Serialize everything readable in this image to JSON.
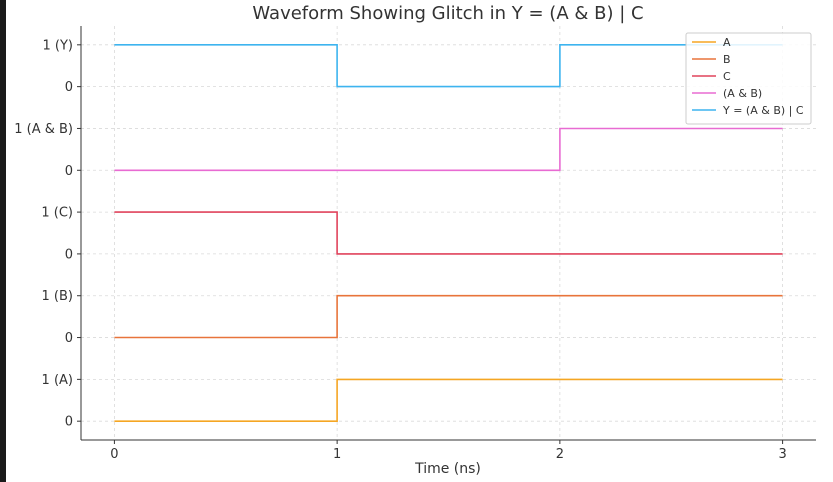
{
  "chart_data": {
    "type": "line",
    "step": "post",
    "title": "Waveform Showing Glitch in Y = (A & B) | C",
    "xlabel": "Time (ns)",
    "ylabel": "",
    "xlim": [
      -0.15,
      3.15
    ],
    "x_ticks": [
      "0",
      "1",
      "2",
      "3"
    ],
    "x": [
      0,
      1,
      2,
      3
    ],
    "grid": true,
    "legend_position": "top-right",
    "y_ticks": [
      {
        "label": "0",
        "value": 0
      },
      {
        "label": "1 (A)",
        "value": 1
      },
      {
        "label": "0",
        "value": 2
      },
      {
        "label": "1 (B)",
        "value": 3
      },
      {
        "label": "0",
        "value": 4
      },
      {
        "label": "1 (C)",
        "value": 5
      },
      {
        "label": "0",
        "value": 6
      },
      {
        "label": "1 (A & B)",
        "value": 7
      },
      {
        "label": "0",
        "value": 8
      },
      {
        "label": "1 (Y)",
        "value": 9
      }
    ],
    "series": [
      {
        "name": "A",
        "color": "#f5a623",
        "offset": 0,
        "values": [
          0,
          1,
          1,
          1
        ]
      },
      {
        "name": "B",
        "color": "#e8743b",
        "offset": 2,
        "values": [
          0,
          1,
          1,
          1
        ]
      },
      {
        "name": "C",
        "color": "#e0435c",
        "offset": 4,
        "values": [
          1,
          0,
          0,
          0
        ]
      },
      {
        "name": "(A & B)",
        "color": "#e86bd2",
        "offset": 6,
        "values": [
          0,
          0,
          1,
          1
        ]
      },
      {
        "name": "Y = (A & B) | C",
        "color": "#3db4ef",
        "offset": 8,
        "values": [
          1,
          0,
          1,
          1
        ]
      }
    ]
  }
}
